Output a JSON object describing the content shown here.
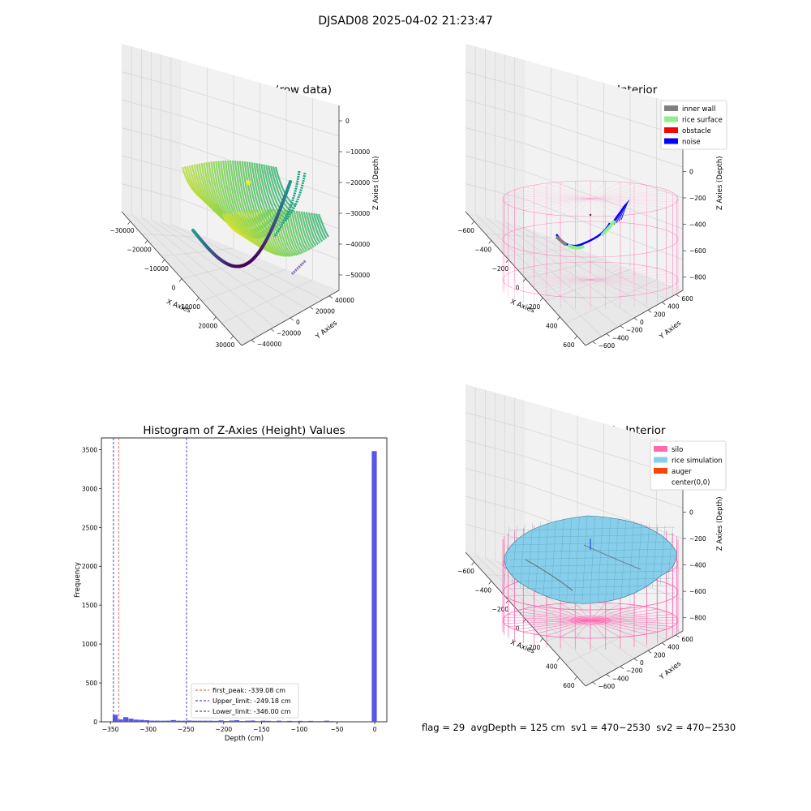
{
  "suptitle": "DJSAD08 2025-04-02 21:23:47",
  "footer": "flag = 29  avgDepth = 125 cm  sv1 = 470~2530  sv2 = 470~2530",
  "colors": {
    "pane": "#f2f2f2",
    "grid": "#d5d5d5",
    "silo": "#ff69b4",
    "rice": "#87ceeb",
    "inner_wall": "#808080",
    "rice_surface": "#90ee90",
    "obstacle": "#ff0000",
    "noise": "#0000ff",
    "auger": "#ff4500",
    "hist_bar": "#4d4de8"
  },
  "chart_data": [
    {
      "type": "scatter",
      "title": "3D Plot of Silo Interior(row data)",
      "xlabel": "X Axies",
      "ylabel": "Y Axies",
      "zlabel": "Z Axies (Depth)",
      "x_ticks": [
        "−30000",
        "−20000",
        "−10000",
        "0",
        "10000",
        "20000",
        "30000"
      ],
      "y_ticks": [
        "−40000",
        "−20000",
        "0",
        "20000",
        "40000"
      ],
      "z_ticks": [
        "0",
        "−10000",
        "−20000",
        "−30000",
        "−40000",
        "−50000"
      ],
      "colormap": "viridis",
      "grid": true
    },
    {
      "type": "scatter",
      "title": "3D classify of Silo Interior",
      "xlabel": "X Axies",
      "ylabel": "Y Axies",
      "zlabel": "Z Axies (Depth)",
      "x_ticks": [
        "−600",
        "−400",
        "−200",
        "0",
        "200",
        "400",
        "600"
      ],
      "y_ticks": [
        "−600",
        "−400",
        "−200",
        "0",
        "200",
        "400",
        "600"
      ],
      "z_ticks": [
        "400",
        "200",
        "0",
        "−200",
        "−400",
        "−600",
        "−800"
      ],
      "legend": [
        "inner wall",
        "rice surface",
        "obstacle",
        "noise"
      ],
      "legend_position": "top-right",
      "grid": true
    },
    {
      "type": "bar",
      "title": "Histogram of Z-Axies (Height) Values",
      "xlabel": "Depth (cm)",
      "ylabel": "Frequency",
      "x_ticks": [
        "−350",
        "−300",
        "−250",
        "−200",
        "−150",
        "−100",
        "−50",
        "0"
      ],
      "y_ticks": [
        "0",
        "500",
        "1000",
        "1500",
        "2000",
        "2500",
        "3000",
        "3500"
      ],
      "xlim": [
        -362,
        16
      ],
      "ylim": [
        0,
        3650
      ],
      "bin_width": 7,
      "bins": [
        [
          -347,
          90
        ],
        [
          -340,
          30
        ],
        [
          -333,
          60
        ],
        [
          -326,
          40
        ],
        [
          -319,
          28
        ],
        [
          -312,
          25
        ],
        [
          -305,
          20
        ],
        [
          -298,
          15
        ],
        [
          -291,
          15
        ],
        [
          -284,
          14
        ],
        [
          -277,
          15
        ],
        [
          -270,
          22
        ],
        [
          -263,
          14
        ],
        [
          -256,
          14
        ],
        [
          -249,
          16
        ],
        [
          -242,
          14
        ],
        [
          -235,
          14
        ],
        [
          -228,
          14
        ],
        [
          -221,
          14
        ],
        [
          -214,
          12
        ],
        [
          -207,
          18
        ],
        [
          -200,
          10
        ],
        [
          -193,
          16
        ],
        [
          -186,
          20
        ],
        [
          -179,
          10
        ],
        [
          -172,
          14
        ],
        [
          -165,
          16
        ],
        [
          -158,
          8
        ],
        [
          -151,
          14
        ],
        [
          -144,
          12
        ],
        [
          -137,
          8
        ],
        [
          -130,
          14
        ],
        [
          -123,
          8
        ],
        [
          -116,
          12
        ],
        [
          -109,
          8
        ],
        [
          -102,
          12
        ],
        [
          -95,
          8
        ],
        [
          -88,
          12
        ],
        [
          -81,
          8
        ],
        [
          -74,
          8
        ],
        [
          -67,
          14
        ],
        [
          -60,
          8
        ],
        [
          -4,
          3480
        ]
      ],
      "vlines": [
        {
          "label": "first_peak: -339.08 cm",
          "x": -339.08,
          "color": "#e24a4a"
        },
        {
          "label": "Upper_limit: -249.18 cm",
          "x": -249.18,
          "color": "#2222aa"
        },
        {
          "label": "Lower_limit: -346.00 cm",
          "x": -346.0,
          "color": "#2222aa"
        }
      ],
      "legend_position": "lower center"
    },
    {
      "type": "scatter",
      "title": "3D simulation of Silo Interior",
      "xlabel": "X Axies",
      "ylabel": "Y Axies",
      "zlabel": "Z Axies (Depth)",
      "x_ticks": [
        "−600",
        "−400",
        "−200",
        "0",
        "200",
        "400",
        "600"
      ],
      "y_ticks": [
        "−600",
        "−400",
        "−200",
        "0",
        "200",
        "400",
        "600"
      ],
      "z_ticks": [
        "400",
        "200",
        "0",
        "−200",
        "−400",
        "−600",
        "−800"
      ],
      "legend": [
        "silo",
        "rice simulation",
        "auger",
        "center(0,0)"
      ],
      "legend_position": "top-right",
      "grid": true
    }
  ]
}
